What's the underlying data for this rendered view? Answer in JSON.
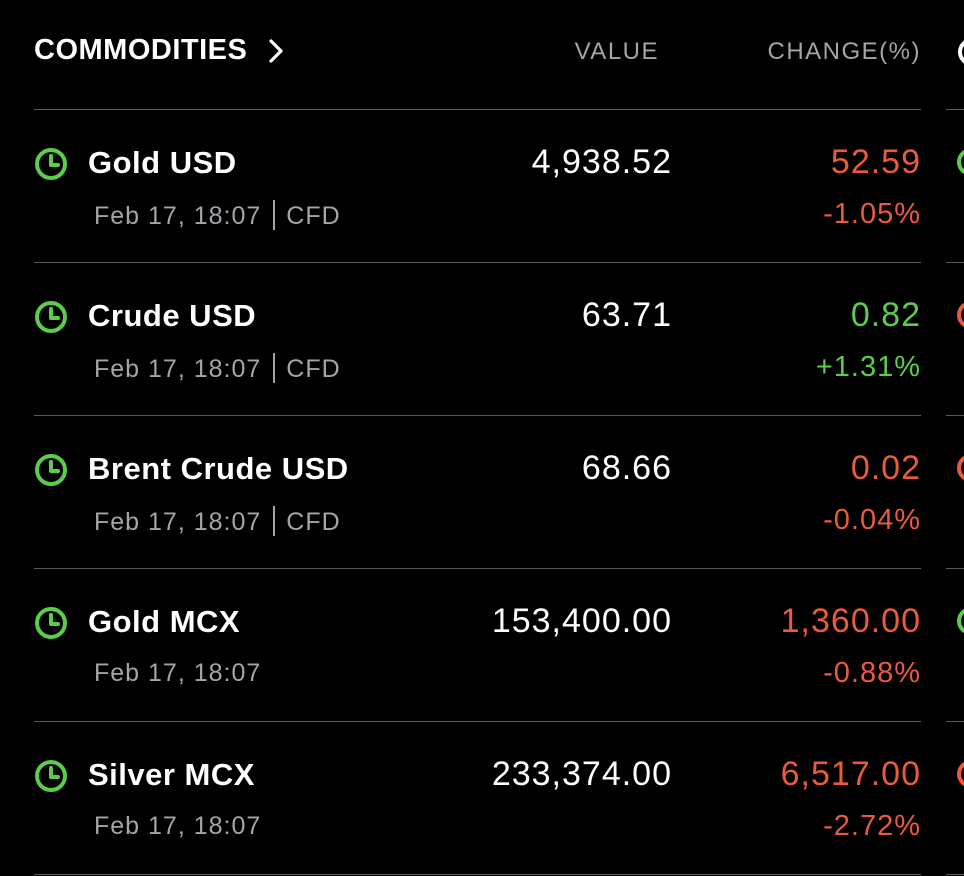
{
  "header": {
    "title": "COMMODITIES",
    "value_label": "VALUE",
    "change_label": "CHANGE(%)"
  },
  "colors": {
    "negative": "#ea5a3c",
    "positive": "#5ccd4b",
    "market_open_icon": "#5ccd4b"
  },
  "rows": [
    {
      "name": "Gold USD",
      "time": "Feb 17, 18:07",
      "type": "CFD",
      "value": "4,938.52",
      "change": "52.59",
      "pct": "-1.05%",
      "direction": "negative",
      "icon": "clock-icon"
    },
    {
      "name": "Crude USD",
      "time": "Feb 17, 18:07",
      "type": "CFD",
      "value": "63.71",
      "change": "0.82",
      "pct": "+1.31%",
      "direction": "positive",
      "icon": "clock-icon"
    },
    {
      "name": "Brent Crude USD",
      "time": "Feb 17, 18:07",
      "type": "CFD",
      "value": "68.66",
      "change": "0.02",
      "pct": "-0.04%",
      "direction": "negative",
      "icon": "clock-icon"
    },
    {
      "name": "Gold MCX",
      "time": "Feb 17, 18:07",
      "type": "",
      "value": "153,400.00",
      "change": "1,360.00",
      "pct": "-0.88%",
      "direction": "negative",
      "icon": "clock-icon"
    },
    {
      "name": "Silver MCX",
      "time": "Feb 17, 18:07",
      "type": "",
      "value": "233,374.00",
      "change": "6,517.00",
      "pct": "-2.72%",
      "direction": "negative",
      "icon": "clock-icon"
    }
  ]
}
